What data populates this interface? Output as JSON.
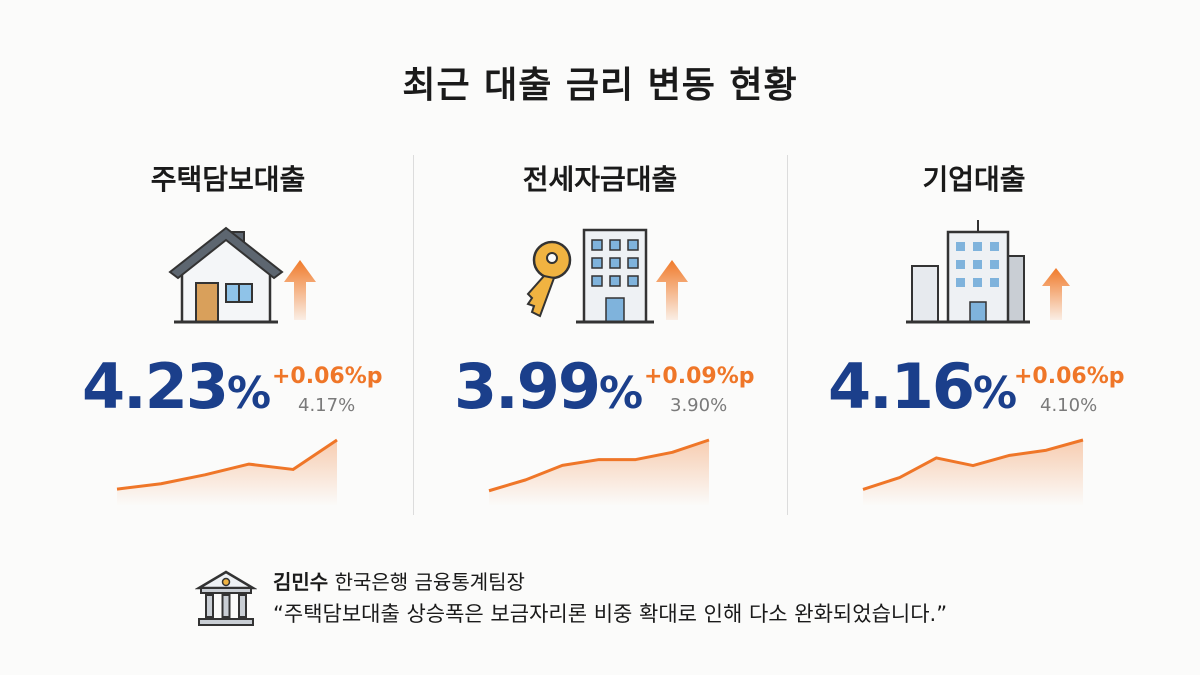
{
  "title": "최근 대출 금리 변동 현황",
  "colors": {
    "rate": "#1b3f8b",
    "delta": "#ef7628",
    "previous": "#7a7a7a"
  },
  "loans": [
    {
      "name": "주택담보대출",
      "icon": "house-icon",
      "rate": "4.23",
      "unit": "%",
      "delta": "+0.06%p",
      "previous": "4.17%",
      "trend": [
        1,
        1.6,
        2.6,
        3.8,
        3.2,
        6.5
      ]
    },
    {
      "name": "전세자금대출",
      "icon": "key-building-icon",
      "rate": "3.99",
      "unit": "%",
      "delta": "+0.09%p",
      "previous": "3.90%",
      "trend": [
        1,
        2.5,
        4.5,
        5.3,
        5.3,
        6.3,
        8
      ]
    },
    {
      "name": "기업대출",
      "icon": "office-buildings-icon",
      "rate": "4.16",
      "unit": "%",
      "delta": "+0.06%p",
      "previous": "4.10%",
      "trend": [
        1,
        2.4,
        4.7,
        3.8,
        5,
        5.6,
        6.8
      ]
    }
  ],
  "quote": {
    "icon": "bank-icon",
    "speaker": "김민수",
    "position": "한국은행 금융통계팀장",
    "text": "“주택담보대출 상승폭은 보금자리론 비중 확대로 인해 다소 완화되었습니다.”"
  }
}
